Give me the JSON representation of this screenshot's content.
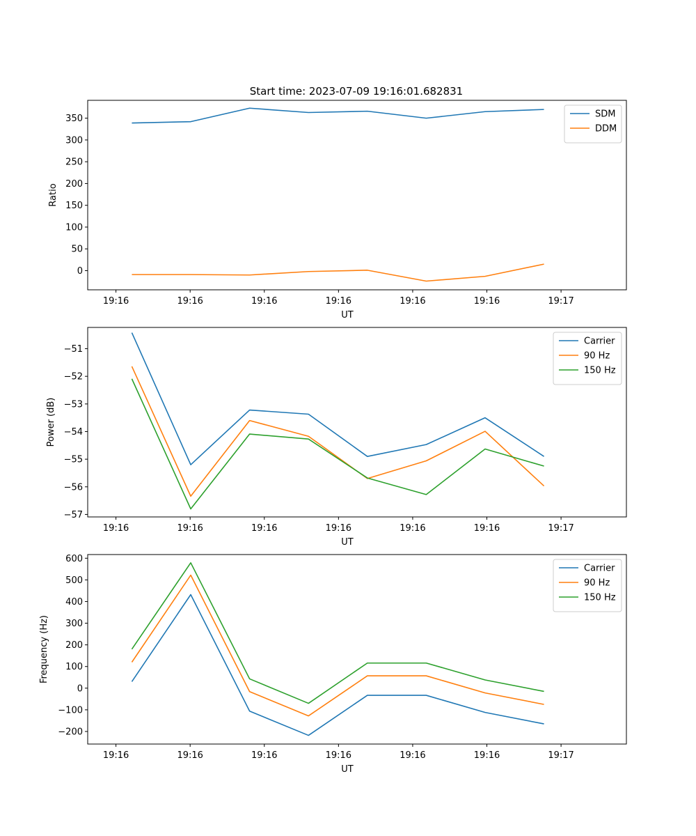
{
  "figure_title": "Start time: 2023-07-09 19:16:01.682831",
  "chart_data": [
    {
      "type": "line",
      "xlabel": "UT",
      "ylabel": "Ratio",
      "x_tick_labels": [
        "19:16",
        "19:16",
        "19:16",
        "19:16",
        "19:16",
        "19:16",
        "19:17"
      ],
      "x_values": [
        1,
        2,
        3,
        4,
        5,
        6,
        7,
        8
      ],
      "xlim": [
        0.25,
        9.4
      ],
      "ylim": [
        -44,
        391
      ],
      "y_ticks": [
        0,
        50,
        100,
        150,
        200,
        250,
        300,
        350
      ],
      "y_tick_labels": [
        "0",
        "50",
        "100",
        "150",
        "200",
        "250",
        "300",
        "350"
      ],
      "grid": false,
      "legend": "top-right",
      "series": [
        {
          "name": "SDM",
          "color": "#1f77b4",
          "values": [
            339,
            342,
            373,
            363,
            366,
            350,
            365,
            370
          ]
        },
        {
          "name": "DDM",
          "color": "#ff7f0e",
          "values": [
            -9,
            -9,
            -10,
            -2,
            1,
            -24,
            -13,
            15
          ]
        }
      ]
    },
    {
      "type": "line",
      "xlabel": "UT",
      "ylabel": "Power (dB)",
      "x_tick_labels": [
        "19:16",
        "19:16",
        "19:16",
        "19:16",
        "19:16",
        "19:16",
        "19:17"
      ],
      "x_values": [
        1,
        2,
        3,
        4,
        5,
        6,
        7,
        8
      ],
      "xlim": [
        0.25,
        9.4
      ],
      "ylim": [
        -57.09,
        -50.23
      ],
      "y_ticks": [
        -51,
        -52,
        -53,
        -54,
        -55,
        -56,
        -57
      ],
      "y_tick_labels": [
        "−51",
        "−52",
        "−53",
        "−54",
        "−55",
        "−56",
        "−57"
      ],
      "grid": false,
      "legend": "top-right",
      "series": [
        {
          "name": "Carrier",
          "color": "#1f77b4",
          "values": [
            -50.42,
            -55.2,
            -53.22,
            -53.37,
            -54.9,
            -54.47,
            -53.5,
            -54.9
          ]
        },
        {
          "name": "90 Hz",
          "color": "#ff7f0e",
          "values": [
            -51.64,
            -56.34,
            -53.6,
            -54.17,
            -55.7,
            -55.06,
            -53.99,
            -55.97
          ]
        },
        {
          "name": "150 Hz",
          "color": "#2ca02c",
          "values": [
            -52.09,
            -56.8,
            -54.09,
            -54.27,
            -55.68,
            -56.28,
            -54.63,
            -55.25
          ]
        }
      ]
    },
    {
      "type": "line",
      "xlabel": "UT",
      "ylabel": "Frequency (Hz)",
      "x_tick_labels": [
        "19:16",
        "19:16",
        "19:16",
        "19:16",
        "19:16",
        "19:16",
        "19:17"
      ],
      "x_values": [
        1,
        2,
        3,
        4,
        5,
        6,
        7,
        8
      ],
      "xlim": [
        0.25,
        9.4
      ],
      "ylim": [
        -258,
        617
      ],
      "y_ticks": [
        600,
        500,
        400,
        300,
        200,
        100,
        0,
        -100,
        -200
      ],
      "y_tick_labels": [
        "600",
        "500",
        "400",
        "300",
        "200",
        "100",
        "0",
        "−100",
        "−200"
      ],
      "grid": false,
      "legend": "top-right",
      "series": [
        {
          "name": "Carrier",
          "color": "#1f77b4",
          "values": [
            30,
            432,
            -106,
            -218,
            -33,
            -33,
            -112,
            -165
          ]
        },
        {
          "name": "90 Hz",
          "color": "#ff7f0e",
          "values": [
            120,
            522,
            -16,
            -128,
            57,
            57,
            -22,
            -75
          ]
        },
        {
          "name": "150 Hz",
          "color": "#2ca02c",
          "values": [
            180,
            579,
            43,
            -70,
            116,
            116,
            38,
            -15
          ]
        }
      ]
    }
  ]
}
